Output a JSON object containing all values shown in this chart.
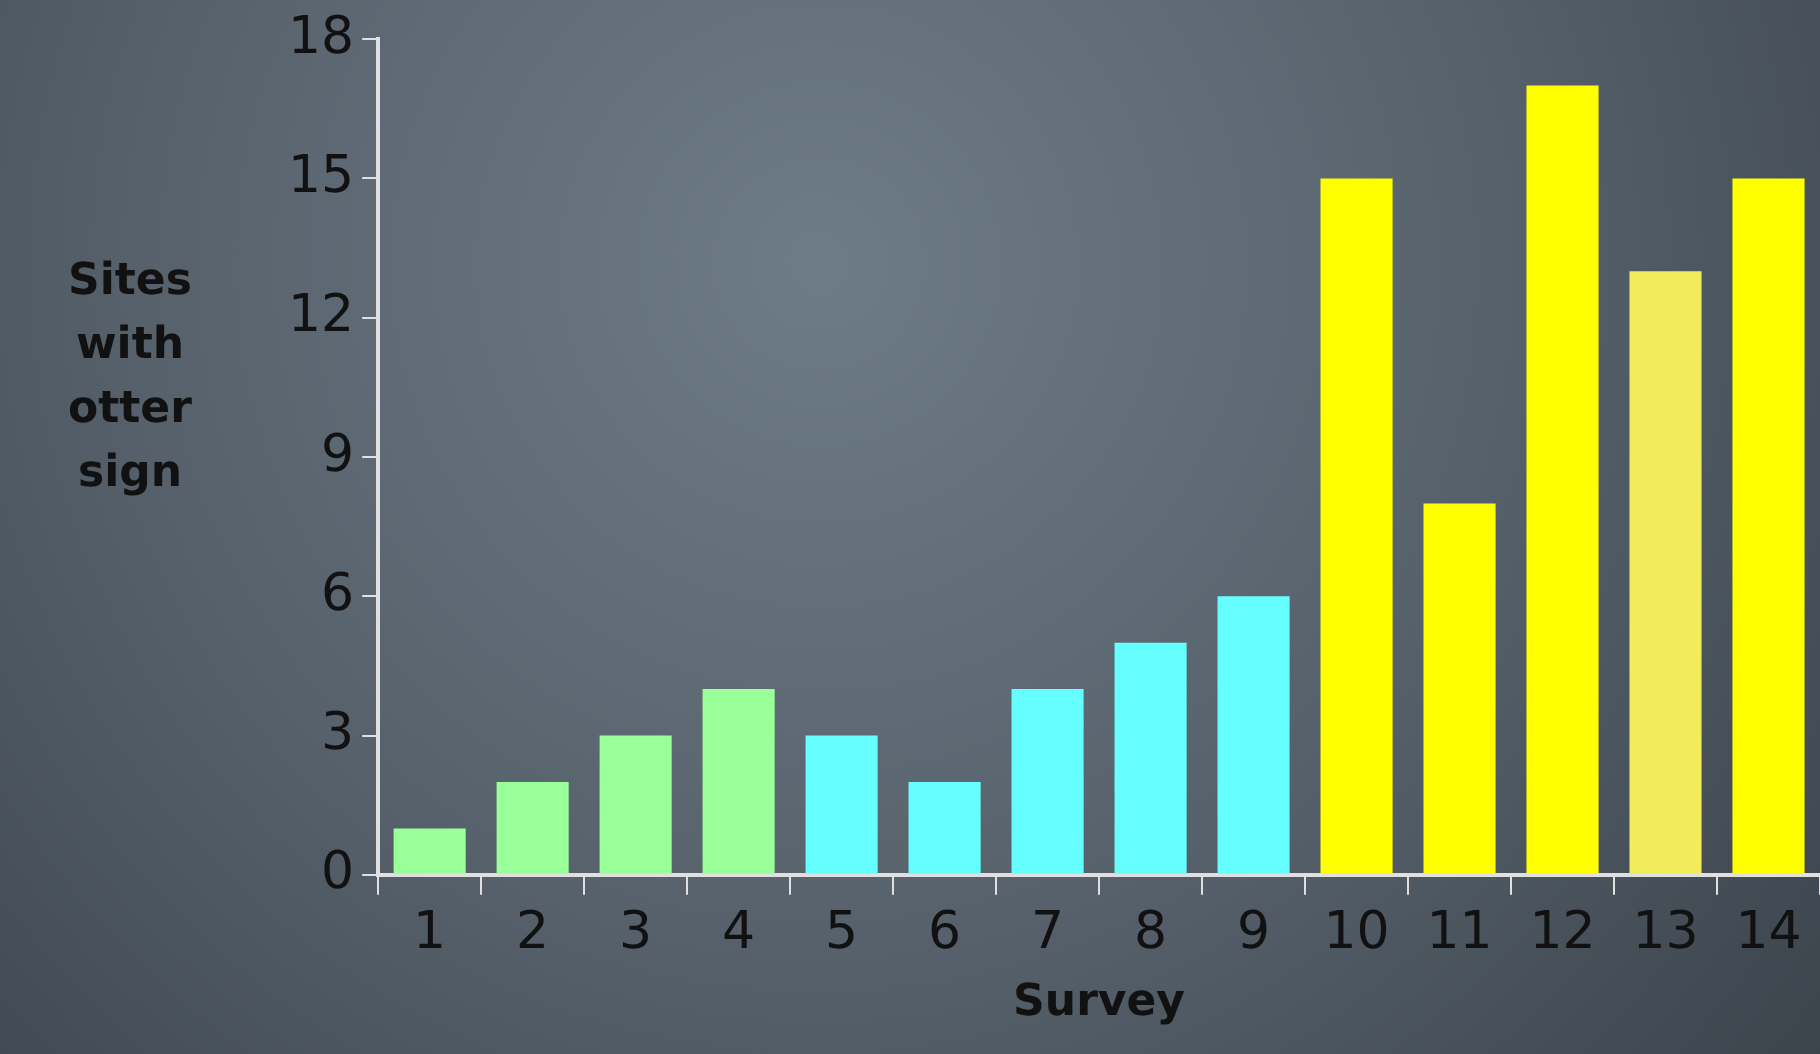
{
  "chart_data": {
    "type": "bar",
    "xlabel": "Survey",
    "ylabel": "Sites with otter sign",
    "categories": [
      "1",
      "2",
      "3",
      "4",
      "5",
      "6",
      "7",
      "8",
      "9",
      "10",
      "11",
      "12",
      "13",
      "14"
    ],
    "values": [
      1,
      2,
      3,
      4,
      3,
      2,
      4,
      5,
      6,
      15,
      8,
      17,
      13,
      15
    ],
    "colors": [
      "#99ff99",
      "#99ff99",
      "#99ff99",
      "#99ff99",
      "#66ffff",
      "#66ffff",
      "#66ffff",
      "#66ffff",
      "#66ffff",
      "#ffff00",
      "#ffff00",
      "#ffff00",
      "#f2eb5c",
      "#ffff00"
    ],
    "ylim": [
      0,
      18
    ],
    "yticks": [
      0,
      3,
      6,
      9,
      12,
      15,
      18
    ],
    "grid": false,
    "legend": false
  }
}
